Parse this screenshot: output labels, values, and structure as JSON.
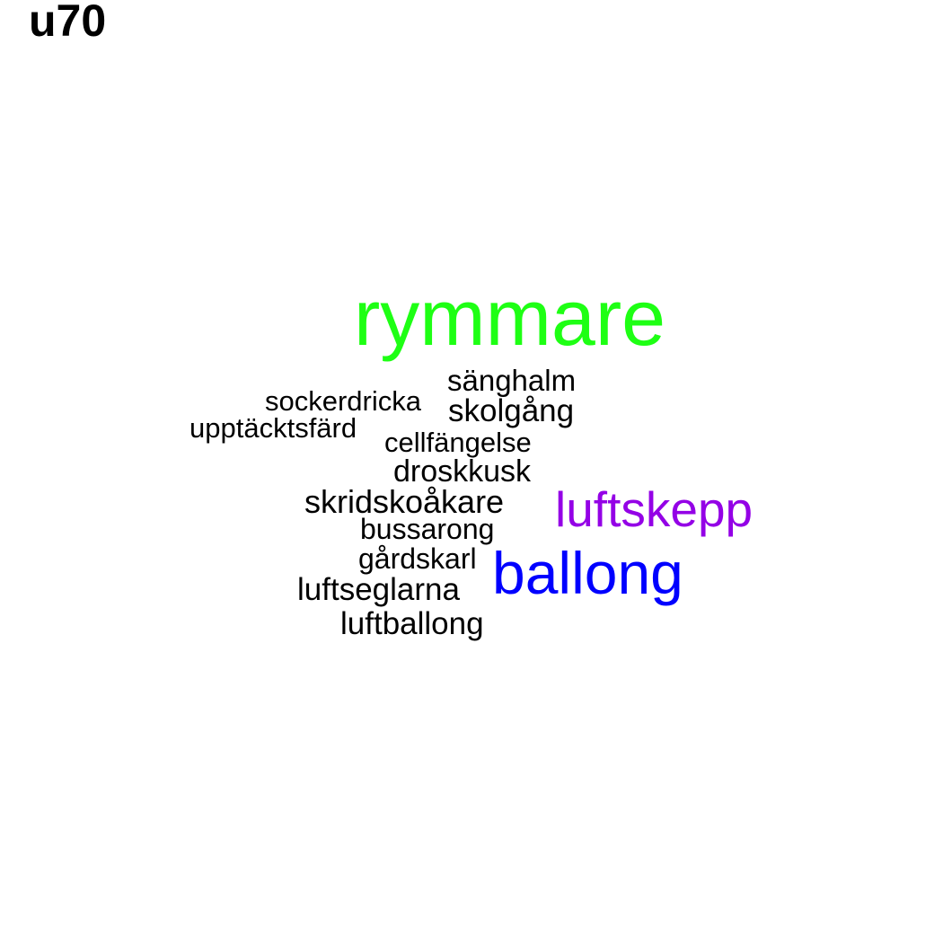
{
  "title": "u70",
  "words": [
    {
      "id": "w-rymmare",
      "text": "rymmare",
      "color": "#1eff14"
    },
    {
      "id": "w-sanghalm",
      "text": "sänghalm",
      "color": "#000000"
    },
    {
      "id": "w-sockerdricka",
      "text": "sockerdricka",
      "color": "#000000"
    },
    {
      "id": "w-skolgang",
      "text": "skolgång",
      "color": "#000000"
    },
    {
      "id": "w-upptacktsfard",
      "text": "upptäcktsfärd",
      "color": "#000000"
    },
    {
      "id": "w-cellfangelse",
      "text": "cellfängelse",
      "color": "#000000"
    },
    {
      "id": "w-droskkusk",
      "text": "droskkusk",
      "color": "#000000"
    },
    {
      "id": "w-skridskoakare",
      "text": "skridskoåkare",
      "color": "#000000"
    },
    {
      "id": "w-luftskepp",
      "text": "luftskepp",
      "color": "#9400e6"
    },
    {
      "id": "w-bussarong",
      "text": "bussarong",
      "color": "#000000"
    },
    {
      "id": "w-gardskarl",
      "text": "gårdskarl",
      "color": "#000000"
    },
    {
      "id": "w-ballong",
      "text": "ballong",
      "color": "#0000ff"
    },
    {
      "id": "w-luftseglarna",
      "text": "luftseglarna",
      "color": "#000000"
    },
    {
      "id": "w-luftballong",
      "text": "luftballong",
      "color": "#000000"
    }
  ]
}
